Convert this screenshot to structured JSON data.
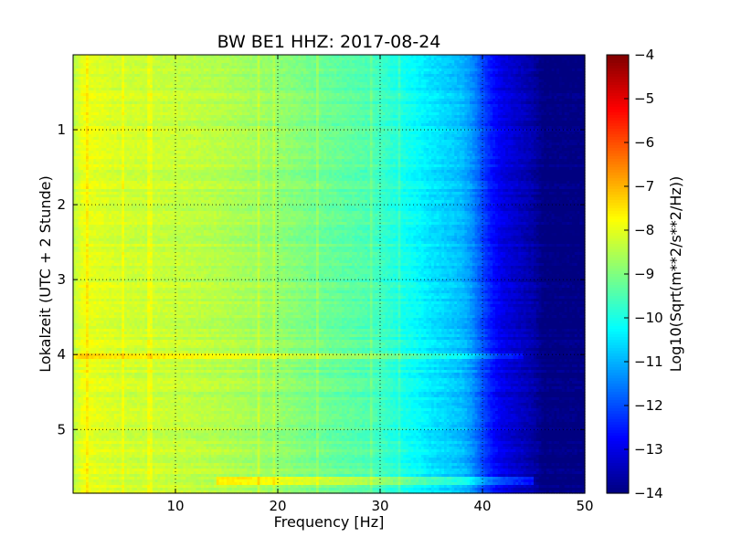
{
  "chart_data": {
    "type": "heatmap",
    "title": "BW BE1 HHZ: 2017-08-24",
    "xlabel": "Frequency [Hz]",
    "ylabel": "Lokalzeit (UTC + 2 Stunde)",
    "xlim": [
      0,
      50
    ],
    "ylim": [
      5.85,
      0
    ],
    "x_ticks": [
      10,
      20,
      30,
      40,
      50
    ],
    "y_ticks": [
      1,
      2,
      3,
      4,
      5
    ],
    "grid": true,
    "colormap": "jet",
    "colorbar": {
      "label": "Log10(Sqrt(m**2/s**2/Hz))",
      "range": [
        -14,
        -4
      ],
      "ticks": [
        -4,
        -5,
        -6,
        -7,
        -8,
        -9,
        -10,
        -11,
        -12,
        -13,
        -14
      ]
    },
    "frequency_profile": {
      "frequency_hz": [
        0,
        1,
        2,
        5,
        10,
        15,
        20,
        25,
        28,
        30,
        32,
        34,
        35,
        36,
        38,
        39,
        40,
        41,
        42,
        44,
        45,
        46,
        50
      ],
      "log10_amplitude": [
        -8.4,
        -7.9,
        -8.0,
        -8.2,
        -8.3,
        -8.5,
        -8.8,
        -9.2,
        -9.4,
        -9.6,
        -10.0,
        -10.3,
        -10.5,
        -10.6,
        -10.9,
        -11.3,
        -12.0,
        -12.6,
        -13.0,
        -13.4,
        -13.6,
        -14.0,
        -14.0
      ]
    },
    "features": [
      {
        "time_h": 4.03,
        "from_hz": 0,
        "to_hz": 44,
        "delta": 0.7
      },
      {
        "time_h": 5.68,
        "from_hz": 14,
        "to_hz": 45,
        "delta": 1.0
      }
    ]
  }
}
